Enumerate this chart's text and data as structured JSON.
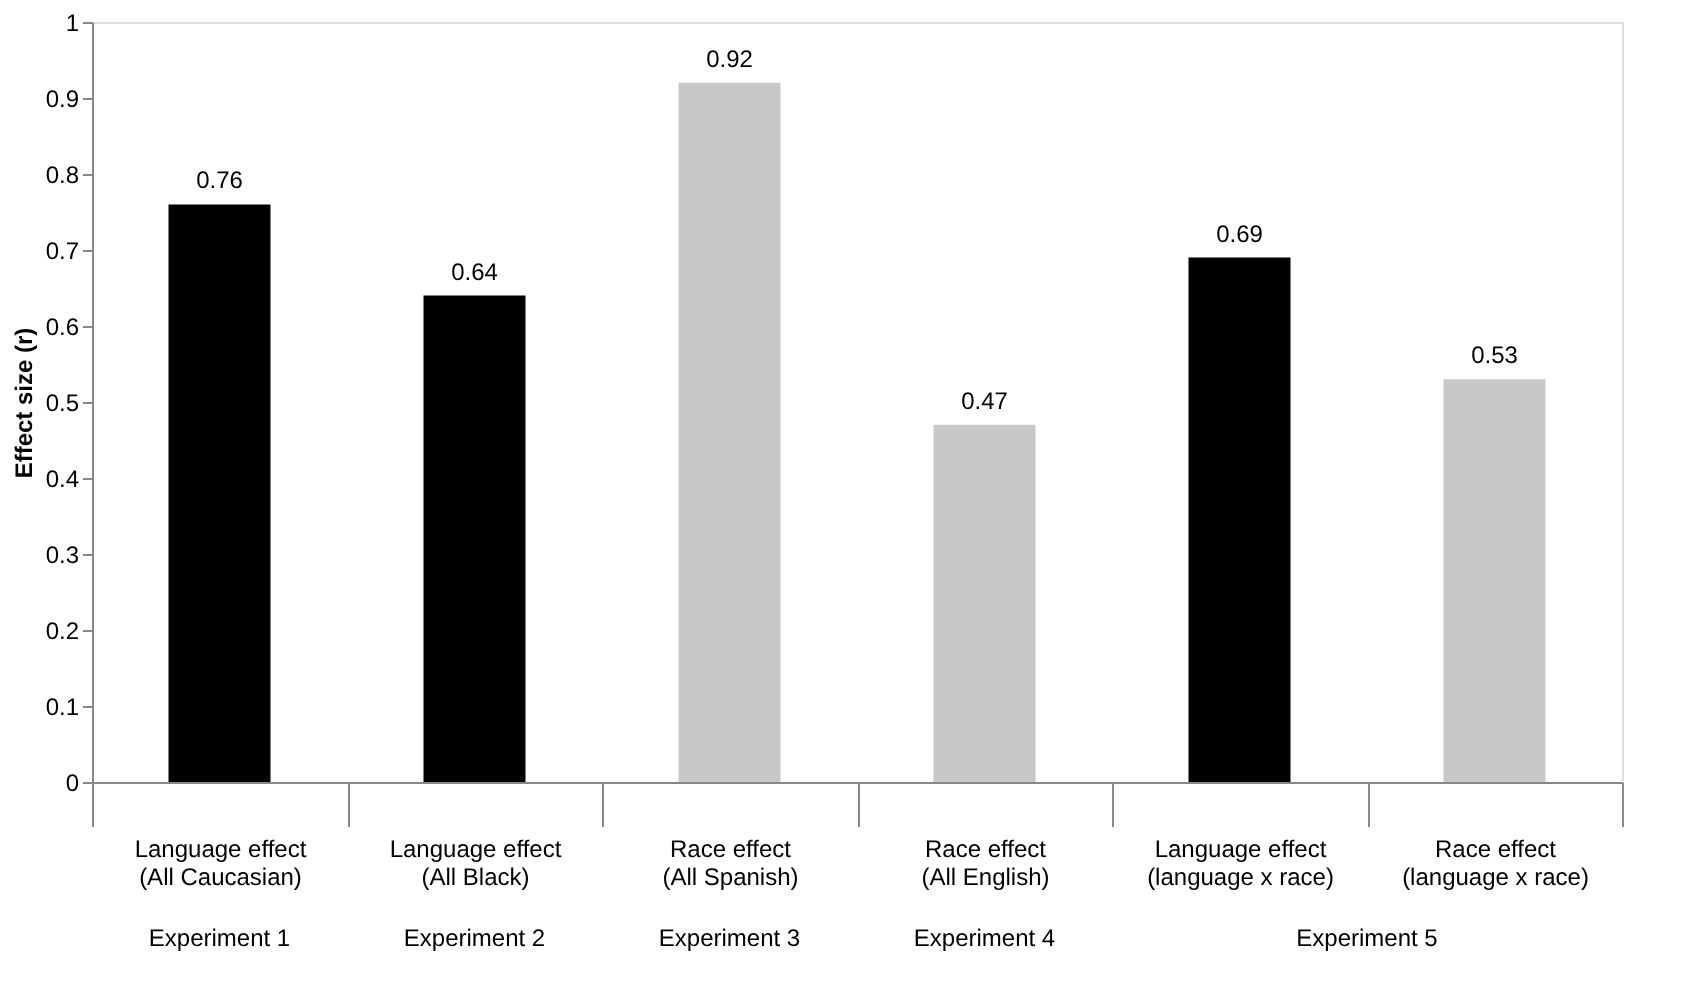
{
  "chart_data": {
    "type": "bar",
    "ylabel": "Effect size (r)",
    "categories": [
      "Language effect\n(All Caucasian)",
      "Language effect\n(All Black)",
      "Race effect\n(All Spanish)",
      "Race effect\n(All English)",
      "Language effect\n(language x race)",
      "Race effect\n(language x race)"
    ],
    "values": [
      0.76,
      0.64,
      0.92,
      0.47,
      0.69,
      0.53
    ],
    "colors": [
      "#000000",
      "#000000",
      "#c8c8c8",
      "#c8c8c8",
      "#000000",
      "#c8c8c8"
    ],
    "ylim": [
      0,
      1
    ],
    "yticks": [
      0,
      0.1,
      0.2,
      0.3,
      0.4,
      0.5,
      0.6,
      0.7,
      0.8,
      0.9,
      1
    ],
    "data_labels": true,
    "grid": false,
    "annotations": [
      "Experiment 1",
      "Experiment 2",
      "Experiment 3",
      "Experiment 4",
      "Experiment 5"
    ]
  }
}
